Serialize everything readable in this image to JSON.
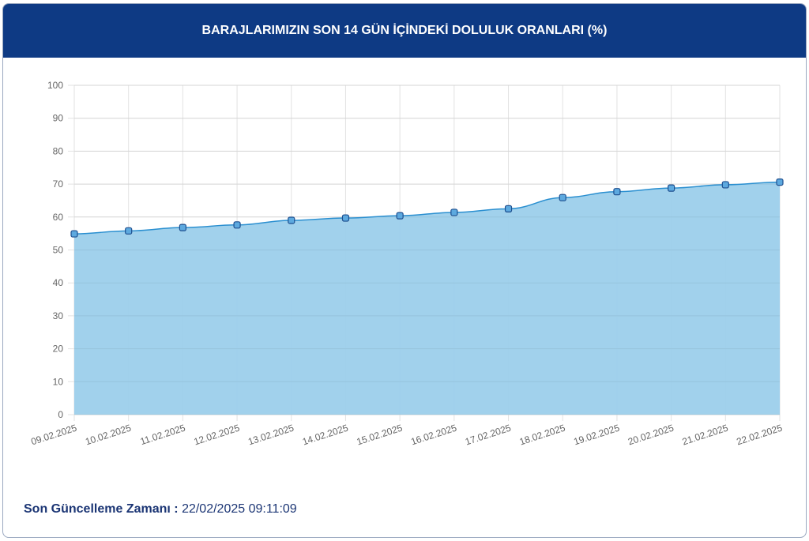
{
  "header": {
    "title": "BARAJLARIMIZIN SON 14 GÜN İÇİNDEKİ DOLULUK ORANLARI (%)"
  },
  "footer": {
    "label": "Son Güncelleme Zamanı :",
    "value": "22/02/2025 09:11:09"
  },
  "chart_data": {
    "type": "area",
    "title": "BARAJLARIMIZIN SON 14 GÜN İÇİNDEKİ DOLULUK ORANLARI (%)",
    "categories": [
      "09.02.2025",
      "10.02.2025",
      "11.02.2025",
      "12.02.2025",
      "13.02.2025",
      "14.02.2025",
      "15.02.2025",
      "16.02.2025",
      "17.02.2025",
      "18.02.2025",
      "19.02.2025",
      "20.02.2025",
      "21.02.2025",
      "22.02.2025"
    ],
    "values": [
      54.9,
      55.8,
      56.8,
      57.6,
      59.0,
      59.7,
      60.4,
      61.4,
      62.5,
      65.9,
      67.7,
      68.8,
      69.8,
      70.6
    ],
    "ylim": [
      0,
      100
    ],
    "yticks": [
      0,
      10,
      20,
      30,
      40,
      50,
      60,
      70,
      80,
      90,
      100
    ],
    "grid": true,
    "colors": {
      "fill": "#9ccfeb",
      "line": "#2a8fd0",
      "point": "#5da9df",
      "point_border": "#1e4f8f",
      "header": "#0e3a84"
    }
  }
}
